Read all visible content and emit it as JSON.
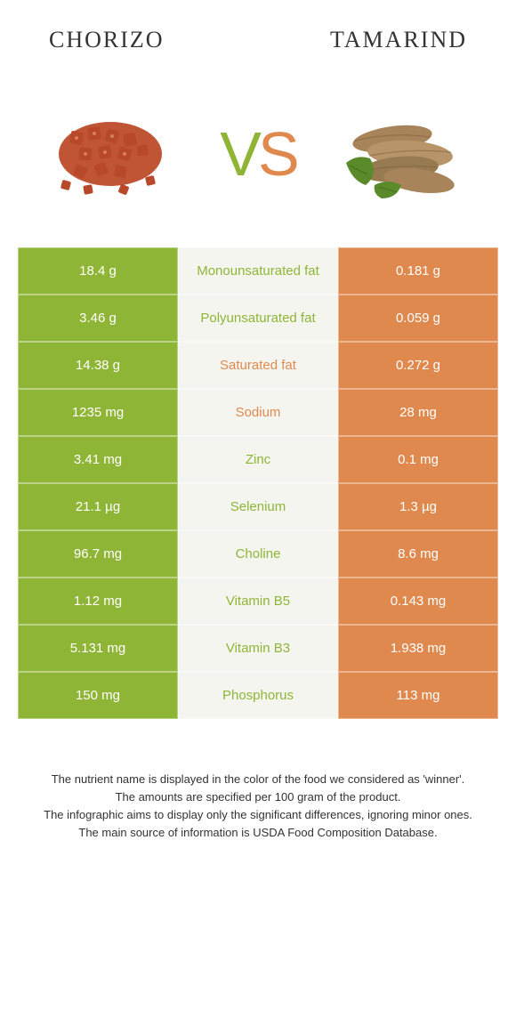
{
  "titles": {
    "left": "Chorizo",
    "right": "Tamarind"
  },
  "vs": {
    "v": "V",
    "s": "S"
  },
  "colors": {
    "green": "#8fb536",
    "orange": "#e0894e",
    "midBg": "#f5f5f0",
    "darkText": "#5a5a3a"
  },
  "rows": [
    {
      "left": "18.4 g",
      "label": "Monounsaturated fat",
      "right": "0.181 g",
      "winner": "left"
    },
    {
      "left": "3.46 g",
      "label": "Polyunsaturated fat",
      "right": "0.059 g",
      "winner": "left"
    },
    {
      "left": "14.38 g",
      "label": "Saturated fat",
      "right": "0.272 g",
      "winner": "right"
    },
    {
      "left": "1235 mg",
      "label": "Sodium",
      "right": "28 mg",
      "winner": "right"
    },
    {
      "left": "3.41 mg",
      "label": "Zinc",
      "right": "0.1 mg",
      "winner": "left"
    },
    {
      "left": "21.1 µg",
      "label": "Selenium",
      "right": "1.3 µg",
      "winner": "left"
    },
    {
      "left": "96.7 mg",
      "label": "Choline",
      "right": "8.6 mg",
      "winner": "left"
    },
    {
      "left": "1.12 mg",
      "label": "Vitamin B5",
      "right": "0.143 mg",
      "winner": "left"
    },
    {
      "left": "5.131 mg",
      "label": "Vitamin B3",
      "right": "1.938 mg",
      "winner": "left"
    },
    {
      "left": "150 mg",
      "label": "Phosphorus",
      "right": "113 mg",
      "winner": "left"
    }
  ],
  "footer": {
    "l1": "The nutrient name is displayed in the color of the food we considered as 'winner'.",
    "l2": "The amounts are specified per 100 gram of the product.",
    "l3": "The infographic aims to display only the significant differences, ignoring minor ones.",
    "l4": "The main source of information is USDA Food Composition Database."
  }
}
